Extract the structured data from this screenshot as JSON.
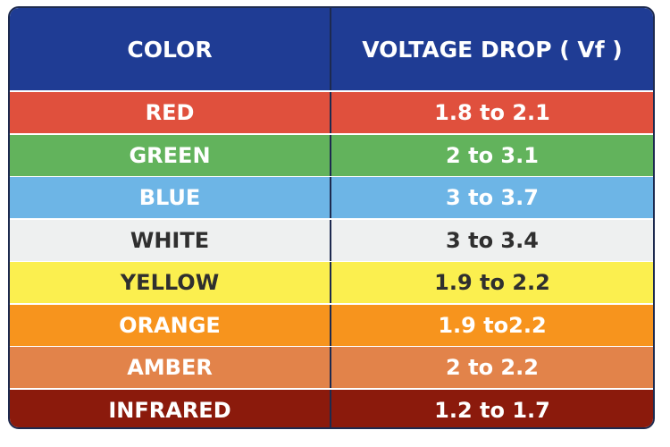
{
  "table": {
    "header": [
      "COLOR",
      "VOLTAGE DROP ( Vf )"
    ],
    "rows": [
      [
        "RED",
        "1.8 to 2.1"
      ],
      [
        "GREEN",
        "2 to 3.1"
      ],
      [
        "BLUE",
        "3 to 3.7"
      ],
      [
        "WHITE",
        "3 to 3.4"
      ],
      [
        "YELLOW",
        "1.9 to 2.2"
      ],
      [
        "ORANGE",
        "1.9 to2.2"
      ],
      [
        "AMBER",
        "2 to 2.2"
      ],
      [
        "INFRARED",
        "1.2 to 1.7"
      ]
    ]
  }
}
